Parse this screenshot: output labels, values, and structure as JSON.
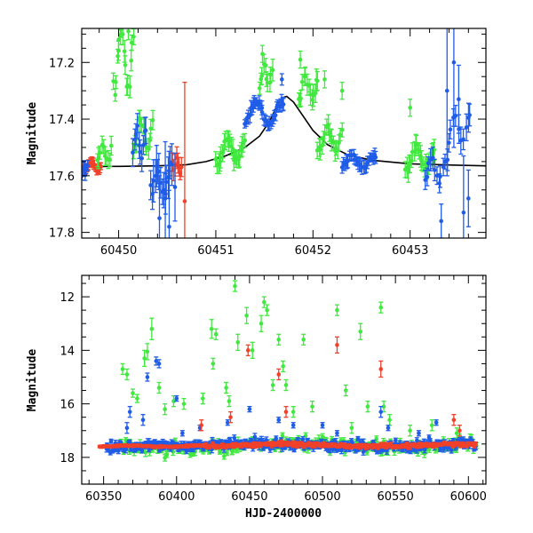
{
  "chart_data": [
    {
      "type": "scatter",
      "panel": "top",
      "title": "",
      "xlabel": "",
      "ylabel": "Magnitude",
      "xlim": [
        60449.62,
        60453.78
      ],
      "ylim": [
        17.82,
        17.08
      ],
      "y_inverted": true,
      "xticks": [
        60450,
        60451,
        60452,
        60453
      ],
      "yticks": [
        17.2,
        17.4,
        17.6,
        17.8
      ],
      "model_curve": {
        "name": "",
        "color": "#000000",
        "points": [
          [
            60449.62,
            17.568
          ],
          [
            60450.0,
            17.567
          ],
          [
            60450.4,
            17.565
          ],
          [
            60450.7,
            17.561
          ],
          [
            60450.9,
            17.55
          ],
          [
            60451.1,
            17.53
          ],
          [
            60451.3,
            17.5
          ],
          [
            60451.45,
            17.46
          ],
          [
            60451.55,
            17.41
          ],
          [
            60451.62,
            17.36
          ],
          [
            60451.68,
            17.325
          ],
          [
            60451.73,
            17.32
          ],
          [
            60451.8,
            17.34
          ],
          [
            60451.9,
            17.39
          ],
          [
            60452.0,
            17.44
          ],
          [
            60452.15,
            17.49
          ],
          [
            60452.35,
            17.525
          ],
          [
            60452.6,
            17.545
          ],
          [
            60453.0,
            17.558
          ],
          [
            60453.4,
            17.562
          ],
          [
            60453.78,
            17.565
          ]
        ]
      },
      "series": [
        {
          "name": "",
          "color": "#f0412a",
          "segments": [
            {
              "x0": 60449.62,
              "x1": 60449.82,
              "base": 17.565,
              "amp": 0.015,
              "scatter": 0.012,
              "err": 0.015,
              "n": 24
            },
            {
              "x0": 60450.55,
              "x1": 60450.65,
              "base": 17.56,
              "amp": 0.02,
              "scatter": 0.03,
              "err": 0.03,
              "n": 8
            }
          ],
          "points": [
            [
              60450.68,
              17.69,
              0.42
            ]
          ]
        },
        {
          "name": "",
          "color": "#41e83f",
          "segments": [
            {
              "x0": 60449.78,
              "x1": 60449.92,
              "base": 17.52,
              "amp": 0.03,
              "scatter": 0.04,
              "err": 0.03,
              "n": 10
            },
            {
              "x0": 60449.95,
              "x1": 60450.15,
              "base": 17.2,
              "amp": 0.08,
              "scatter": 0.12,
              "err": 0.03,
              "n": 16
            },
            {
              "x0": 60450.15,
              "x1": 60450.35,
              "base": 17.45,
              "amp": 0.05,
              "scatter": 0.05,
              "err": 0.03,
              "n": 14
            },
            {
              "x0": 60451.0,
              "x1": 60451.3,
              "base": 17.51,
              "amp": 0.04,
              "scatter": 0.04,
              "err": 0.03,
              "n": 24
            },
            {
              "x0": 60451.45,
              "x1": 60451.58,
              "base": 17.25,
              "amp": 0.03,
              "scatter": 0.04,
              "err": 0.03,
              "n": 10
            },
            {
              "x0": 60451.85,
              "x1": 60452.05,
              "base": 17.29,
              "amp": 0.04,
              "scatter": 0.04,
              "err": 0.03,
              "n": 14
            },
            {
              "x0": 60452.05,
              "x1": 60452.3,
              "base": 17.47,
              "amp": 0.04,
              "scatter": 0.03,
              "err": 0.03,
              "n": 18
            },
            {
              "x0": 60452.95,
              "x1": 60453.25,
              "base": 17.54,
              "amp": 0.04,
              "scatter": 0.04,
              "err": 0.03,
              "n": 24
            }
          ],
          "points": [
            [
              60450.0,
              17.12,
              0.04
            ],
            [
              60450.1,
              17.09,
              0.03
            ],
            [
              60451.48,
              17.17,
              0.03
            ],
            [
              60451.87,
              17.19,
              0.03
            ],
            [
              60452.12,
              17.26,
              0.03
            ],
            [
              60452.3,
              17.3,
              0.03
            ],
            [
              60453.0,
              17.36,
              0.03
            ]
          ]
        },
        {
          "name": "",
          "color": "#1f5ce8",
          "segments": [
            {
              "x0": 60449.62,
              "x1": 60449.68,
              "base": 17.58,
              "amp": 0.02,
              "scatter": 0.02,
              "err": 0.02,
              "n": 6
            },
            {
              "x0": 60450.15,
              "x1": 60450.28,
              "base": 17.48,
              "amp": 0.05,
              "scatter": 0.06,
              "err": 0.04,
              "n": 10
            },
            {
              "x0": 60450.33,
              "x1": 60450.55,
              "base": 17.62,
              "amp": 0.05,
              "scatter": 0.06,
              "err": 0.06,
              "n": 16
            },
            {
              "x0": 60451.3,
              "x1": 60451.7,
              "base": 17.38,
              "amp": 0.04,
              "scatter": 0.03,
              "err": 0.02,
              "n": 34
            },
            {
              "x0": 60452.3,
              "x1": 60452.65,
              "base": 17.55,
              "amp": 0.02,
              "scatter": 0.025,
              "err": 0.02,
              "n": 28
            },
            {
              "x0": 60453.15,
              "x1": 60453.38,
              "base": 17.58,
              "amp": 0.03,
              "scatter": 0.04,
              "err": 0.03,
              "n": 12
            },
            {
              "x0": 60453.4,
              "x1": 60453.62,
              "base": 17.43,
              "amp": 0.05,
              "scatter": 0.05,
              "err": 0.04,
              "n": 10
            }
          ],
          "points": [
            [
              60450.42,
              17.75,
              0.15
            ],
            [
              60450.48,
              17.68,
              0.2
            ],
            [
              60450.52,
              17.78,
              0.18
            ],
            [
              60450.58,
              17.64,
              0.12
            ],
            [
              60451.68,
              17.26,
              0.02
            ],
            [
              60453.32,
              17.76,
              0.06
            ],
            [
              60453.38,
              17.3,
              0.3
            ],
            [
              60453.45,
              17.2,
              0.3
            ],
            [
              60453.5,
              17.33,
              0.12
            ],
            [
              60453.55,
              17.73,
              0.2
            ],
            [
              60453.6,
              17.68,
              0.1
            ]
          ]
        }
      ]
    },
    {
      "type": "scatter",
      "panel": "bottom",
      "title": "",
      "xlabel": "HJD-2400000",
      "ylabel": "Magnitude",
      "xlim": [
        60335,
        60612
      ],
      "ylim": [
        19.0,
        11.2
      ],
      "y_inverted": true,
      "xticks": [
        60350,
        60400,
        60450,
        60500,
        60550,
        60600
      ],
      "yticks": [
        12,
        14,
        16,
        18
      ],
      "series": [
        {
          "name": "",
          "color": "#41e83f",
          "segments": [
            {
              "x0": 60360,
              "x1": 60605,
              "base": 17.55,
              "amp": 0.1,
              "scatter": 0.55,
              "err": 0.12,
              "n": 210
            }
          ],
          "points": [
            [
              60363,
              14.7,
              0.2
            ],
            [
              60366,
              14.9,
              0.2
            ],
            [
              60370,
              15.6,
              0.15
            ],
            [
              60373,
              15.8,
              0.15
            ],
            [
              60378,
              14.3,
              0.3
            ],
            [
              60380,
              14.05,
              0.3
            ],
            [
              60383,
              13.2,
              0.4
            ],
            [
              60388,
              15.4,
              0.2
            ],
            [
              60392,
              16.2,
              0.2
            ],
            [
              60398,
              15.9,
              0.2
            ],
            [
              60405,
              16.0,
              0.2
            ],
            [
              60418,
              15.8,
              0.2
            ],
            [
              60424,
              13.2,
              0.35
            ],
            [
              60425,
              14.5,
              0.2
            ],
            [
              60427,
              13.4,
              0.2
            ],
            [
              60434,
              15.4,
              0.2
            ],
            [
              60436,
              15.9,
              0.2
            ],
            [
              60440,
              11.6,
              0.2
            ],
            [
              60442,
              13.7,
              0.3
            ],
            [
              60448,
              12.7,
              0.3
            ],
            [
              60452,
              14.0,
              0.3
            ],
            [
              60458,
              13.0,
              0.3
            ],
            [
              60460,
              12.2,
              0.2
            ],
            [
              60462,
              12.5,
              0.2
            ],
            [
              60466,
              15.3,
              0.2
            ],
            [
              60470,
              13.6,
              0.2
            ],
            [
              60473,
              14.6,
              0.2
            ],
            [
              60475,
              15.3,
              0.2
            ],
            [
              60480,
              16.3,
              0.2
            ],
            [
              60487,
              13.6,
              0.2
            ],
            [
              60493,
              16.1,
              0.2
            ],
            [
              60510,
              12.5,
              0.2
            ],
            [
              60516,
              15.5,
              0.2
            ],
            [
              60520,
              16.9,
              0.2
            ],
            [
              60526,
              13.3,
              0.3
            ],
            [
              60531,
              16.1,
              0.2
            ],
            [
              60540,
              12.4,
              0.2
            ],
            [
              60542,
              16.1,
              0.2
            ],
            [
              60546,
              16.6,
              0.2
            ],
            [
              60560,
              17.0,
              0.2
            ],
            [
              60575,
              16.8,
              0.2
            ],
            [
              60592,
              17.1,
              0.2
            ]
          ]
        },
        {
          "name": "",
          "color": "#1f5ce8",
          "segments": [
            {
              "x0": 60352,
              "x1": 60605,
              "base": 17.55,
              "amp": 0.05,
              "scatter": 0.4,
              "err": 0.1,
              "n": 380
            }
          ],
          "points": [
            [
              60366,
              16.9,
              0.2
            ],
            [
              60368,
              16.3,
              0.2
            ],
            [
              60377,
              16.6,
              0.2
            ],
            [
              60380,
              15.0,
              0.15
            ],
            [
              60386,
              14.4,
              0.15
            ],
            [
              60388,
              14.5,
              0.15
            ],
            [
              60400,
              15.8,
              0.1
            ],
            [
              60404,
              17.1,
              0.1
            ],
            [
              60416,
              16.9,
              0.1
            ],
            [
              60435,
              16.7,
              0.1
            ],
            [
              60450,
              16.2,
              0.1
            ],
            [
              60470,
              16.6,
              0.1
            ],
            [
              60480,
              16.8,
              0.1
            ],
            [
              60500,
              16.8,
              0.1
            ],
            [
              60510,
              17.1,
              0.1
            ],
            [
              60540,
              16.3,
              0.2
            ],
            [
              60545,
              16.9,
              0.1
            ],
            [
              60566,
              17.1,
              0.1
            ],
            [
              60578,
              16.7,
              0.1
            ]
          ]
        },
        {
          "name": "",
          "color": "#f0412a",
          "segments": [
            {
              "x0": 60347,
              "x1": 60420,
              "base": 17.58,
              "amp": 0.02,
              "scatter": 0.05,
              "err": 0.04,
              "n": 120
            },
            {
              "x0": 60420,
              "x1": 60605,
              "base": 17.55,
              "amp": 0.04,
              "scatter": 0.15,
              "err": 0.06,
              "n": 240
            }
          ],
          "points": [
            [
              60417,
              16.8,
              0.2
            ],
            [
              60437,
              16.5,
              0.2
            ],
            [
              60449,
              14.0,
              0.2
            ],
            [
              60470,
              14.9,
              0.2
            ],
            [
              60475,
              16.3,
              0.2
            ],
            [
              60510,
              13.8,
              0.3
            ],
            [
              60540,
              14.7,
              0.3
            ],
            [
              60590,
              16.6,
              0.2
            ],
            [
              60594,
              17.0,
              0.2
            ]
          ]
        }
      ]
    }
  ]
}
